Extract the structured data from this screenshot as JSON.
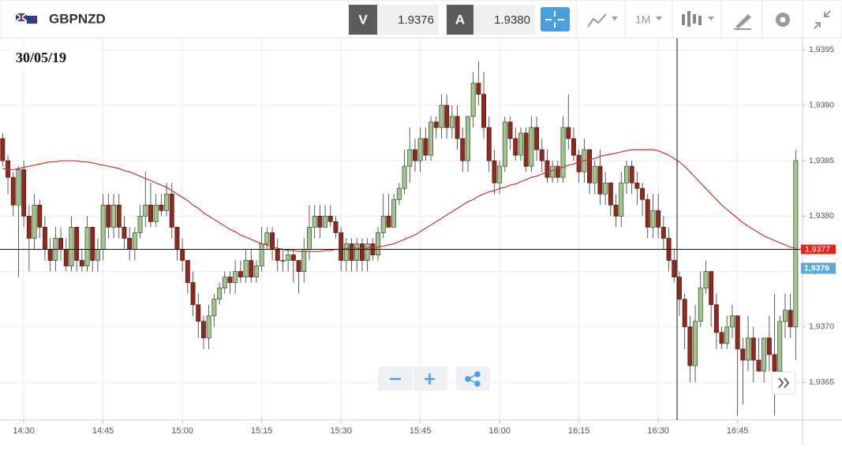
{
  "toolbar": {
    "symbol": "GBPNZD",
    "bid_letter": "V",
    "bid": 1.9376,
    "ask_letter": "A",
    "ask": {
      "value": 1.938,
      "label": "1.9380"
    },
    "timeframe": "1M"
  },
  "chart_data": {
    "type": "candlestick",
    "date_label": "30/05/19",
    "categories": [
      null,
      null,
      null,
      null,
      "14:30",
      null,
      null,
      null,
      null,
      null,
      null,
      null,
      null,
      null,
      null,
      null,
      null,
      null,
      null,
      "14:45",
      null,
      null,
      null,
      null,
      null,
      null,
      null,
      null,
      null,
      null,
      null,
      null,
      null,
      null,
      "15:00",
      null,
      null,
      null,
      null,
      null,
      null,
      null,
      null,
      null,
      null,
      null,
      null,
      null,
      null,
      "15:15",
      null,
      null,
      null,
      null,
      null,
      null,
      null,
      null,
      null,
      null,
      null,
      null,
      null,
      null,
      "15:30",
      null,
      null,
      null,
      null,
      null,
      null,
      null,
      null,
      null,
      null,
      null,
      null,
      null,
      null,
      "15:45",
      null,
      null,
      null,
      null,
      null,
      null,
      null,
      null,
      null,
      null,
      null,
      null,
      null,
      null,
      "16:00",
      null,
      null,
      null,
      null,
      null,
      null,
      null,
      null,
      null,
      null,
      null,
      null,
      null,
      null,
      "16:15",
      null,
      null,
      null,
      null,
      null,
      null,
      null,
      null,
      null,
      null,
      null,
      null,
      null,
      null,
      "16:30",
      null,
      null,
      null,
      null,
      null,
      null,
      null,
      null,
      null,
      null,
      null,
      null,
      null,
      null,
      "16:45",
      null,
      null,
      null,
      null,
      null,
      null,
      null,
      null,
      null,
      null,
      null
    ],
    "ohlc": [
      [
        1.9387,
        1.93875,
        1.93845,
        1.9385
      ],
      [
        1.9385,
        1.93855,
        1.9382,
        1.93835
      ],
      [
        1.93835,
        1.9384,
        1.938,
        1.9381
      ],
      [
        1.9381,
        1.93845,
        1.93745,
        1.93842
      ],
      [
        1.93842,
        1.9385,
        1.9379,
        1.938
      ],
      [
        1.938,
        1.9381,
        1.9375,
        1.9378
      ],
      [
        1.9378,
        1.9382,
        1.9377,
        1.9381
      ],
      [
        1.9381,
        1.93815,
        1.9378,
        1.9379
      ],
      [
        1.9379,
        1.938,
        1.9376,
        1.9377
      ],
      [
        1.9377,
        1.9378,
        1.9375,
        1.9376
      ],
      [
        1.9376,
        1.9379,
        1.9375,
        1.9378
      ],
      [
        1.9378,
        1.9379,
        1.9376,
        1.9377
      ],
      [
        1.9377,
        1.9378,
        1.9375,
        1.93755
      ],
      [
        1.93755,
        1.938,
        1.9375,
        1.9379
      ],
      [
        1.9379,
        1.9379,
        1.9375,
        1.9376
      ],
      [
        1.9376,
        1.9377,
        1.9375,
        1.93755
      ],
      [
        1.93755,
        1.938,
        1.9375,
        1.9379
      ],
      [
        1.9379,
        1.9379,
        1.9375,
        1.9376
      ],
      [
        1.9376,
        1.9378,
        1.9375,
        1.9377
      ],
      [
        1.9377,
        1.9382,
        1.9376,
        1.9381
      ],
      [
        1.9381,
        1.9382,
        1.9378,
        1.9379
      ],
      [
        1.9379,
        1.9382,
        1.9378,
        1.9381
      ],
      [
        1.9381,
        1.9382,
        1.9378,
        1.9379
      ],
      [
        1.9379,
        1.938,
        1.9377,
        1.9378
      ],
      [
        1.9378,
        1.9379,
        1.9376,
        1.9377
      ],
      [
        1.9377,
        1.9379,
        1.9376,
        1.93785
      ],
      [
        1.93785,
        1.9381,
        1.9378,
        1.938
      ],
      [
        1.938,
        1.9384,
        1.9379,
        1.9381
      ],
      [
        1.9381,
        1.9383,
        1.9379,
        1.93795
      ],
      [
        1.93795,
        1.9382,
        1.9379,
        1.9381
      ],
      [
        1.9381,
        1.9382,
        1.938,
        1.93805
      ],
      [
        1.93805,
        1.9383,
        1.938,
        1.9382
      ],
      [
        1.9382,
        1.9383,
        1.9378,
        1.9379
      ],
      [
        1.9379,
        1.9379,
        1.9376,
        1.9377
      ],
      [
        1.9377,
        1.9378,
        1.9375,
        1.9376
      ],
      [
        1.9376,
        1.9376,
        1.9373,
        1.9374
      ],
      [
        1.9374,
        1.9375,
        1.9371,
        1.9372
      ],
      [
        1.9372,
        1.9373,
        1.9369,
        1.93705
      ],
      [
        1.93705,
        1.9371,
        1.9368,
        1.9369
      ],
      [
        1.9369,
        1.9372,
        1.9368,
        1.9371
      ],
      [
        1.9371,
        1.9373,
        1.937,
        1.93725
      ],
      [
        1.93725,
        1.9374,
        1.9372,
        1.93735
      ],
      [
        1.93735,
        1.9375,
        1.9373,
        1.93745
      ],
      [
        1.93745,
        1.9375,
        1.9373,
        1.9374
      ],
      [
        1.9374,
        1.9376,
        1.9373,
        1.9375
      ],
      [
        1.9375,
        1.9376,
        1.9374,
        1.93745
      ],
      [
        1.93745,
        1.9377,
        1.9374,
        1.9376
      ],
      [
        1.9376,
        1.9377,
        1.9374,
        1.93745
      ],
      [
        1.93745,
        1.9376,
        1.9374,
        1.93755
      ],
      [
        1.93755,
        1.9379,
        1.9375,
        1.93775
      ],
      [
        1.93775,
        1.9379,
        1.9377,
        1.93785
      ],
      [
        1.93785,
        1.9379,
        1.9376,
        1.9377
      ],
      [
        1.9377,
        1.9378,
        1.9375,
        1.9376
      ],
      [
        1.9376,
        1.9377,
        1.9375,
        1.9376
      ],
      [
        1.9376,
        1.9377,
        1.9375,
        1.93765
      ],
      [
        1.93765,
        1.9377,
        1.9374,
        1.9376
      ],
      [
        1.9376,
        1.9376,
        1.9373,
        1.9375
      ],
      [
        1.9375,
        1.9378,
        1.9374,
        1.9377
      ],
      [
        1.9377,
        1.9381,
        1.9376,
        1.9379
      ],
      [
        1.9379,
        1.9381,
        1.9378,
        1.938
      ],
      [
        1.938,
        1.9381,
        1.9378,
        1.9379
      ],
      [
        1.9379,
        1.9381,
        1.9379,
        1.938
      ],
      [
        1.938,
        1.9381,
        1.9379,
        1.93795
      ],
      [
        1.93795,
        1.938,
        1.9378,
        1.93785
      ],
      [
        1.93785,
        1.9379,
        1.9375,
        1.9376
      ],
      [
        1.9376,
        1.9378,
        1.9375,
        1.93775
      ],
      [
        1.93775,
        1.9378,
        1.9375,
        1.9376
      ],
      [
        1.9376,
        1.9378,
        1.9375,
        1.93775
      ],
      [
        1.93775,
        1.9378,
        1.9375,
        1.9376
      ],
      [
        1.9376,
        1.9378,
        1.9375,
        1.93775
      ],
      [
        1.93775,
        1.9378,
        1.9376,
        1.93765
      ],
      [
        1.93765,
        1.9379,
        1.9376,
        1.93785
      ],
      [
        1.93785,
        1.9382,
        1.9378,
        1.938
      ],
      [
        1.938,
        1.9382,
        1.9379,
        1.9379
      ],
      [
        1.9379,
        1.9382,
        1.9379,
        1.93815
      ],
      [
        1.93815,
        1.9383,
        1.9381,
        1.93825
      ],
      [
        1.93825,
        1.9386,
        1.9382,
        1.93845
      ],
      [
        1.93845,
        1.9388,
        1.9383,
        1.9386
      ],
      [
        1.9386,
        1.9387,
        1.9384,
        1.9385
      ],
      [
        1.9385,
        1.9388,
        1.9384,
        1.9387
      ],
      [
        1.9387,
        1.9388,
        1.9385,
        1.93855
      ],
      [
        1.93855,
        1.9389,
        1.9385,
        1.93885
      ],
      [
        1.93885,
        1.9389,
        1.9387,
        1.9388
      ],
      [
        1.9388,
        1.9391,
        1.9387,
        1.939
      ],
      [
        1.939,
        1.9391,
        1.9387,
        1.9388
      ],
      [
        1.9388,
        1.939,
        1.9387,
        1.9389
      ],
      [
        1.9389,
        1.939,
        1.9386,
        1.9387
      ],
      [
        1.9387,
        1.9388,
        1.9384,
        1.9385
      ],
      [
        1.9385,
        1.9389,
        1.9384,
        1.9389
      ],
      [
        1.9389,
        1.9393,
        1.9388,
        1.9392
      ],
      [
        1.9392,
        1.9394,
        1.939,
        1.9391
      ],
      [
        1.9391,
        1.9393,
        1.9387,
        1.9388
      ],
      [
        1.9388,
        1.9389,
        1.9384,
        1.9385
      ],
      [
        1.9385,
        1.9386,
        1.9382,
        1.9383
      ],
      [
        1.9383,
        1.9385,
        1.9382,
        1.93845
      ],
      [
        1.93845,
        1.9389,
        1.9384,
        1.93885
      ],
      [
        1.93885,
        1.9389,
        1.9386,
        1.9387
      ],
      [
        1.9387,
        1.9388,
        1.9385,
        1.93855
      ],
      [
        1.93855,
        1.9388,
        1.9385,
        1.93875
      ],
      [
        1.93875,
        1.9388,
        1.9384,
        1.93845
      ],
      [
        1.93845,
        1.9389,
        1.9384,
        1.9388
      ],
      [
        1.9388,
        1.9389,
        1.9385,
        1.9386
      ],
      [
        1.9386,
        1.9387,
        1.9384,
        1.9385
      ],
      [
        1.9385,
        1.9386,
        1.9383,
        1.93835
      ],
      [
        1.93835,
        1.9385,
        1.9383,
        1.93845
      ],
      [
        1.93845,
        1.9385,
        1.9383,
        1.93835
      ],
      [
        1.93835,
        1.9389,
        1.9383,
        1.9388
      ],
      [
        1.9388,
        1.9391,
        1.9386,
        1.9387
      ],
      [
        1.9387,
        1.9388,
        1.9385,
        1.93855
      ],
      [
        1.93855,
        1.9386,
        1.9383,
        1.9384
      ],
      [
        1.9384,
        1.9387,
        1.9383,
        1.9386
      ],
      [
        1.9386,
        1.9386,
        1.9382,
        1.9383
      ],
      [
        1.9383,
        1.9385,
        1.9382,
        1.93845
      ],
      [
        1.93845,
        1.9386,
        1.9381,
        1.9382
      ],
      [
        1.9382,
        1.9384,
        1.9381,
        1.9383
      ],
      [
        1.9383,
        1.9383,
        1.938,
        1.9381
      ],
      [
        1.9381,
        1.9382,
        1.9379,
        1.938
      ],
      [
        1.938,
        1.9384,
        1.9379,
        1.9383
      ],
      [
        1.9383,
        1.9385,
        1.9382,
        1.93845
      ],
      [
        1.93845,
        1.9385,
        1.9382,
        1.9383
      ],
      [
        1.9383,
        1.9384,
        1.9381,
        1.93825
      ],
      [
        1.93825,
        1.9383,
        1.938,
        1.93815
      ],
      [
        1.93815,
        1.9382,
        1.9378,
        1.9379
      ],
      [
        1.9379,
        1.9382,
        1.9378,
        1.93805
      ],
      [
        1.93805,
        1.9382,
        1.9378,
        1.9379
      ],
      [
        1.9379,
        1.938,
        1.9377,
        1.9378
      ],
      [
        1.9378,
        1.9379,
        1.9375,
        1.9376
      ],
      [
        1.9376,
        1.9377,
        1.9374,
        1.93745
      ],
      [
        1.93745,
        1.9375,
        1.9371,
        1.93725
      ],
      [
        1.93725,
        1.9373,
        1.9368,
        1.937
      ],
      [
        1.937,
        1.9371,
        1.9365,
        1.93665
      ],
      [
        1.93665,
        1.9372,
        1.9365,
        1.93705
      ],
      [
        1.93705,
        1.9375,
        1.937,
        1.93735
      ],
      [
        1.93735,
        1.9376,
        1.9373,
        1.9375
      ],
      [
        1.9375,
        1.9375,
        1.937,
        1.9372
      ],
      [
        1.9372,
        1.9373,
        1.9368,
        1.93695
      ],
      [
        1.93695,
        1.937,
        1.9368,
        1.93685
      ],
      [
        1.93685,
        1.9371,
        1.9368,
        1.937
      ],
      [
        1.937,
        1.9372,
        1.9369,
        1.9371
      ],
      [
        1.9371,
        1.9371,
        1.9362,
        1.9368
      ],
      [
        1.9368,
        1.9369,
        1.9363,
        1.9367
      ],
      [
        1.9367,
        1.9371,
        1.9366,
        1.9369
      ],
      [
        1.9369,
        1.937,
        1.9365,
        1.9367
      ],
      [
        1.9367,
        1.9369,
        1.9366,
        1.9366
      ],
      [
        1.9366,
        1.9369,
        1.9365,
        1.9369
      ],
      [
        1.9369,
        1.9371,
        1.9366,
        1.93675
      ],
      [
        1.93675,
        1.9373,
        1.9362,
        1.9366
      ],
      [
        1.9366,
        1.9371,
        1.9365,
        1.93705
      ],
      [
        1.93705,
        1.9373,
        1.9369,
        1.93715
      ],
      [
        1.93715,
        1.9373,
        1.9369,
        1.937
      ],
      [
        1.937,
        1.9386,
        1.9367,
        1.9385
      ]
    ],
    "moving_average": {
      "color": "#c0392b",
      "values": [
        1.93843,
        1.93842,
        1.93842,
        1.93843,
        1.93844,
        1.93845,
        1.93846,
        1.93847,
        1.93848,
        1.93849,
        1.93849,
        1.9385,
        1.9385,
        1.9385,
        1.9385,
        1.93849,
        1.93849,
        1.93848,
        1.93847,
        1.93846,
        1.93845,
        1.93844,
        1.93843,
        1.93841,
        1.9384,
        1.93838,
        1.93836,
        1.93834,
        1.93832,
        1.9383,
        1.93828,
        1.93826,
        1.93823,
        1.9382,
        1.93817,
        1.93814,
        1.9381,
        1.93807,
        1.93803,
        1.938,
        1.93797,
        1.93794,
        1.93791,
        1.93788,
        1.93786,
        1.93783,
        1.93781,
        1.93779,
        1.93777,
        1.93775,
        1.93774,
        1.93772,
        1.93771,
        1.9377,
        1.93769,
        1.93769,
        1.93768,
        1.93768,
        1.93768,
        1.93768,
        1.93768,
        1.93769,
        1.93769,
        1.9377,
        1.9377,
        1.93771,
        1.93771,
        1.93771,
        1.93771,
        1.93771,
        1.93772,
        1.93772,
        1.93773,
        1.93774,
        1.93775,
        1.93777,
        1.93779,
        1.93781,
        1.93783,
        1.93786,
        1.93789,
        1.93792,
        1.93795,
        1.93798,
        1.93801,
        1.93804,
        1.93807,
        1.9381,
        1.93813,
        1.93815,
        1.93818,
        1.9382,
        1.93822,
        1.93823,
        1.93825,
        1.93826,
        1.93828,
        1.93829,
        1.93831,
        1.93833,
        1.93835,
        1.93836,
        1.93838,
        1.9384,
        1.93841,
        1.93843,
        1.93844,
        1.93846,
        1.93847,
        1.93849,
        1.9385,
        1.93851,
        1.93852,
        1.93854,
        1.93855,
        1.93856,
        1.93857,
        1.93858,
        1.93859,
        1.9386,
        1.9386,
        1.9386,
        1.9386,
        1.9386,
        1.93859,
        1.93857,
        1.93855,
        1.93852,
        1.93849,
        1.93845,
        1.9384,
        1.93835,
        1.9383,
        1.93825,
        1.9382,
        1.93815,
        1.9381,
        1.93806,
        1.93802,
        1.93798,
        1.93794,
        1.93791,
        1.93788,
        1.93785,
        1.93782,
        1.9378,
        1.93778,
        1.93776,
        1.93774,
        1.93772,
        1.93771
      ]
    },
    "up_color": "#a3c58f",
    "down_color": "#8e2a20",
    "ylim": [
      1.93616,
      1.93961
    ],
    "yticks": [
      {
        "value": 1.9365,
        "label": "1,9365"
      },
      {
        "value": 1.937,
        "label": "1,9370"
      },
      {
        "value": 1.9375,
        "label": "1,9375"
      },
      {
        "value": 1.938,
        "label": "1,9380"
      },
      {
        "value": 1.9385,
        "label": "1,9385"
      },
      {
        "value": 1.939,
        "label": "1,9390"
      },
      {
        "value": 1.9395,
        "label": "1,9395"
      }
    ],
    "grid": true,
    "crosshair_price": {
      "value": 1.9377,
      "label": "1,9377"
    },
    "bid_price": {
      "value": 1.9376,
      "label": "1,9376"
    }
  }
}
